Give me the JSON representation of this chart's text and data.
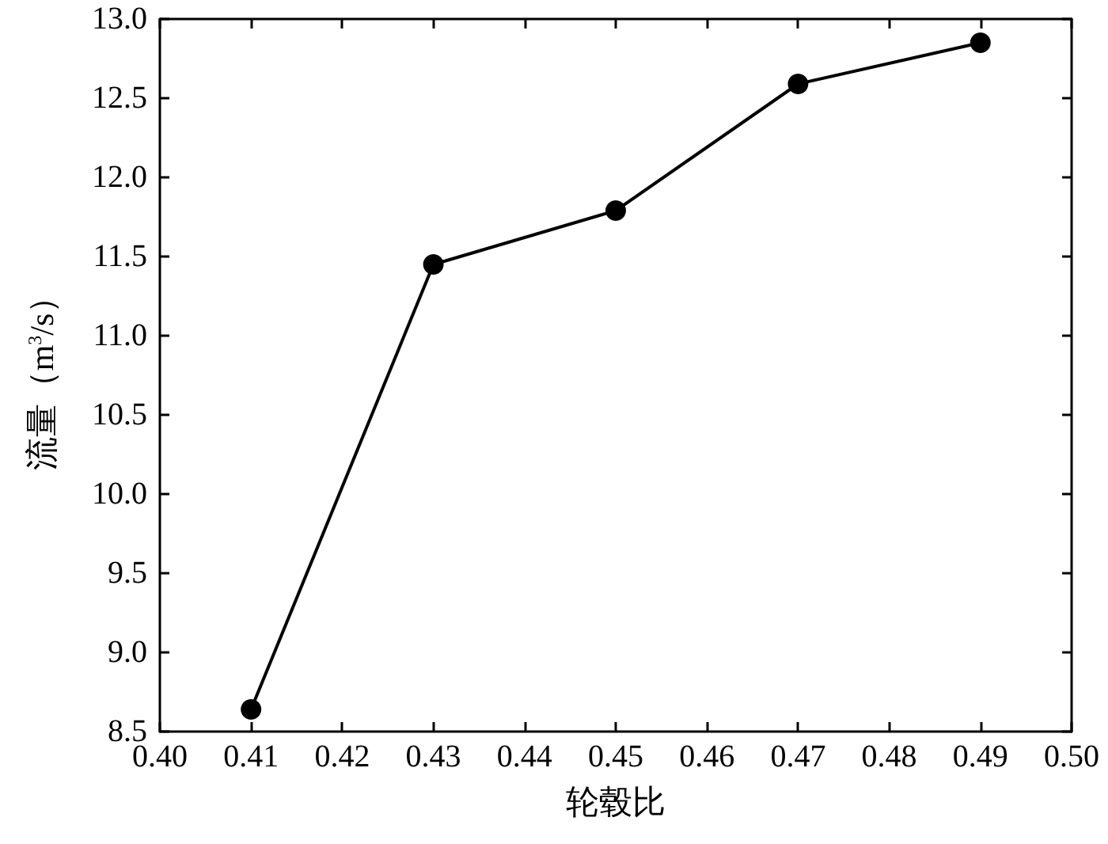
{
  "chart_data": {
    "type": "line",
    "xlabel": "轮毂比",
    "ylabel": "流量（m$^{3}$/s）",
    "x": [
      0.41,
      0.43,
      0.45,
      0.47,
      0.49
    ],
    "series": [
      {
        "color": "#000000",
        "values": [
          8.64,
          11.45,
          11.79,
          12.59,
          12.85
        ]
      }
    ],
    "xlim": [
      0.4,
      0.5
    ],
    "xticks": [
      {
        "value": 0.4,
        "label": "0.40"
      },
      0.41,
      0.42,
      0.43,
      0.44,
      0.45,
      0.46,
      0.47,
      0.48,
      0.49,
      {
        "value": 0.5,
        "label": "0.50"
      }
    ],
    "ylim": [
      8.5,
      13.0
    ],
    "yticks": [
      8.5,
      {
        "value": 9,
        "label": "9.0"
      },
      9.5,
      {
        "value": 10,
        "label": "10.0"
      },
      10.5,
      {
        "value": 11,
        "label": "11.0"
      },
      11.5,
      {
        "value": 12,
        "label": "12.0"
      },
      12.5,
      {
        "value": 13,
        "label": "13.0"
      }
    ],
    "marker": "circle",
    "line_style": "solid"
  }
}
